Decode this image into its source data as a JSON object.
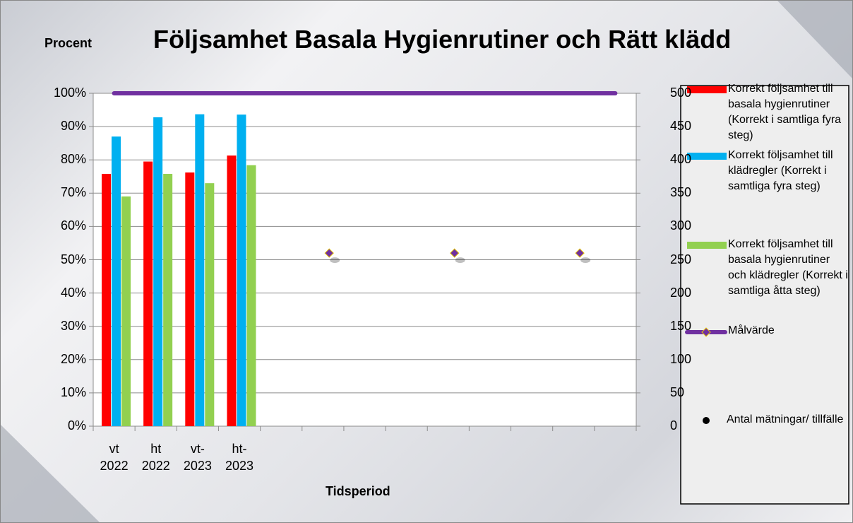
{
  "chart_data": {
    "type": "bar",
    "title": "Följsamhet Basala Hygienrutiner och Rätt klädd",
    "y_label": "Procent",
    "x_label": "Tidsperiod",
    "categories": [
      "vt 2022",
      "ht 2022",
      "vt-2023",
      "ht-2023",
      null,
      null,
      null,
      null,
      null,
      null,
      null,
      null,
      null
    ],
    "series": [
      {
        "name": "Korrekt följsamhet till basala hygienrutiner (Korrekt i samtliga fyra steg)",
        "color": "#ff0000",
        "type": "bar",
        "values": [
          75.8,
          79.5,
          76.2,
          81.3,
          null,
          null,
          null,
          null,
          null,
          null,
          null,
          null,
          null
        ]
      },
      {
        "name": "Korrekt följsamhet till klädregler (Korrekt i samtliga fyra steg)",
        "color": "#00b0f0",
        "type": "bar",
        "values": [
          87,
          92.8,
          93.7,
          93.6,
          null,
          null,
          null,
          null,
          null,
          null,
          null,
          null,
          null
        ]
      },
      {
        "name": "Korrekt följsamhet till basala hygienrutiner och klädregler (Korrekt i samtliga åtta steg)",
        "color": "#92d050",
        "type": "bar",
        "values": [
          69,
          75.8,
          73,
          78.4,
          null,
          null,
          null,
          null,
          null,
          null,
          null,
          null,
          null
        ]
      },
      {
        "name": "Målvärde",
        "color": "#7030a0",
        "type": "line",
        "values": [
          100,
          100,
          100,
          100,
          100,
          100,
          100,
          100,
          100,
          100,
          100,
          100,
          100
        ]
      },
      {
        "name": "Antal mätningar/ tillfälle",
        "color": "#7030a0",
        "type": "scatter",
        "axis": "y2",
        "values": [
          null,
          null,
          null,
          null,
          null,
          260,
          null,
          null,
          260,
          null,
          null,
          260,
          null
        ]
      }
    ],
    "ylim": [
      0,
      100
    ],
    "yticks": [
      {
        "value": 0,
        "label": "0%"
      },
      {
        "value": 10,
        "label": "10%"
      },
      {
        "value": 20,
        "label": "20%"
      },
      {
        "value": 30,
        "label": "30%"
      },
      {
        "value": 40,
        "label": "40%"
      },
      {
        "value": 50,
        "label": "50%"
      },
      {
        "value": 60,
        "label": "60%"
      },
      {
        "value": 70,
        "label": "70%"
      },
      {
        "value": 80,
        "label": "80%"
      },
      {
        "value": 90,
        "label": "90%"
      },
      {
        "value": 100,
        "label": "100%"
      }
    ],
    "y2lim": [
      0,
      500
    ],
    "y2ticks": [
      0,
      50,
      100,
      150,
      200,
      250,
      300,
      350,
      400,
      450,
      500
    ],
    "grid": true,
    "legend": "right"
  }
}
